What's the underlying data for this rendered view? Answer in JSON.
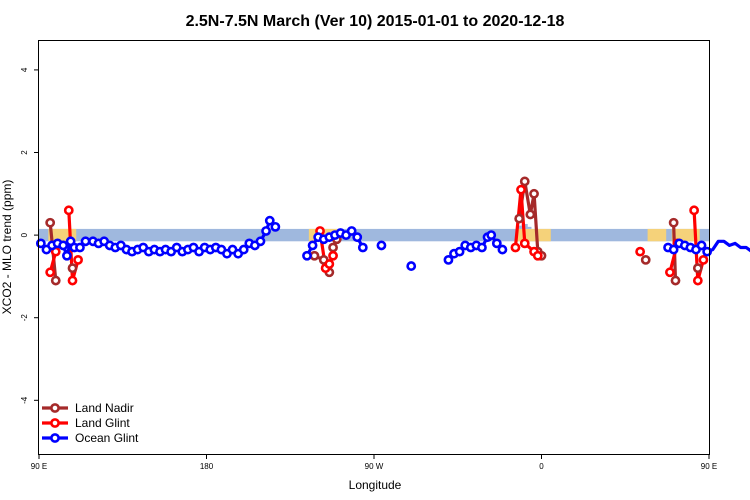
{
  "chart_data": {
    "type": "line",
    "title": "2.5N-7.5N March (Ver 10)   2015-01-01 to 2020-12-18",
    "xlabel": "Longitude",
    "ylabel": "XCO2 - MLO trend (ppm)",
    "xlim": [
      -90,
      270
    ],
    "ylim": [
      -5.3,
      4.7
    ],
    "x_ticks": [
      {
        "value": -90,
        "label": "90 E"
      },
      {
        "value": 0,
        "label": "180"
      },
      {
        "value": 90,
        "label": "90 W"
      },
      {
        "value": 180,
        "label": "0"
      },
      {
        "value": 270,
        "label": "90 E"
      },
      {
        "value": 360,
        "label": "180"
      }
    ],
    "y_ticks": [
      -4,
      -2,
      0,
      2,
      4
    ],
    "grid": false,
    "legend_position": "bottom-left",
    "background_bands": [
      {
        "name": "ocean",
        "color": "#9fb8de",
        "y_range": [
          -0.15,
          0.15
        ]
      },
      {
        "name": "land",
        "color": "#f5d27a",
        "y_range": [
          -0.15,
          0.15
        ]
      }
    ],
    "series": [
      {
        "name": "Land Nadir",
        "color": "#a52a2a",
        "segments": [
          [
            [
              -84,
              0.3
            ],
            [
              -81,
              -1.1
            ]
          ],
          [
            [
              -72,
              -0.8
            ]
          ],
          [
            [
              58,
              -0.5
            ],
            [
              63,
              -0.6
            ],
            [
              66,
              -0.9
            ],
            [
              68,
              -0.3
            ],
            [
              70,
              -0.1
            ]
          ],
          [
            [
              168,
              0.4
            ],
            [
              171,
              1.3
            ],
            [
              174,
              0.5
            ],
            [
              176,
              1.0
            ],
            [
              178,
              -0.4
            ],
            [
              180,
              -0.5
            ]
          ],
          [
            [
              236,
              -0.6
            ]
          ],
          [
            [
              251,
              0.3
            ],
            [
              252,
              -1.1
            ]
          ],
          [
            [
              264,
              -0.8
            ]
          ]
        ]
      },
      {
        "name": "Land Glint",
        "color": "#ff0000",
        "segments": [
          [
            [
              -84,
              -0.9
            ],
            [
              -81,
              -0.4
            ]
          ],
          [
            [
              -74,
              0.6
            ],
            [
              -72,
              -1.1
            ],
            [
              -69,
              -0.6
            ]
          ],
          [
            [
              61,
              0.1
            ],
            [
              64,
              -0.8
            ],
            [
              66,
              -0.7
            ],
            [
              68,
              -0.5
            ]
          ],
          [
            [
              166,
              -0.3
            ],
            [
              169,
              1.1
            ],
            [
              171,
              -0.2
            ],
            [
              176,
              -0.4
            ],
            [
              178,
              -0.5
            ]
          ],
          [
            [
              233,
              -0.4
            ]
          ],
          [
            [
              249,
              -0.9
            ],
            [
              253,
              -0.2
            ]
          ],
          [
            [
              262,
              0.6
            ],
            [
              264,
              -1.1
            ],
            [
              267,
              -0.6
            ]
          ]
        ]
      },
      {
        "name": "Ocean Glint",
        "color": "#0000ff",
        "segments": [
          [
            [
              -89,
              -0.2
            ],
            [
              -86,
              -0.35
            ],
            [
              -83,
              -0.25
            ],
            [
              -80,
              -0.2
            ],
            [
              -77,
              -0.25
            ],
            [
              -75,
              -0.5
            ],
            [
              -73,
              -0.15
            ],
            [
              -71,
              -0.3
            ],
            [
              -68,
              -0.3
            ],
            [
              -65,
              -0.15
            ],
            [
              -61,
              -0.15
            ],
            [
              -58,
              -0.2
            ],
            [
              -55,
              -0.15
            ],
            [
              -52,
              -0.25
            ],
            [
              -49,
              -0.3
            ],
            [
              -46,
              -0.25
            ],
            [
              -43,
              -0.35
            ],
            [
              -40,
              -0.4
            ],
            [
              -37,
              -0.35
            ],
            [
              -34,
              -0.3
            ],
            [
              -31,
              -0.4
            ],
            [
              -28,
              -0.35
            ],
            [
              -25,
              -0.4
            ],
            [
              -22,
              -0.35
            ],
            [
              -19,
              -0.4
            ],
            [
              -16,
              -0.3
            ],
            [
              -13,
              -0.4
            ],
            [
              -10,
              -0.35
            ],
            [
              -7,
              -0.3
            ],
            [
              -4,
              -0.4
            ],
            [
              -1,
              -0.3
            ],
            [
              2,
              -0.35
            ],
            [
              5,
              -0.3
            ],
            [
              8,
              -0.35
            ],
            [
              11,
              -0.45
            ],
            [
              14,
              -0.35
            ],
            [
              17,
              -0.45
            ],
            [
              20,
              -0.35
            ],
            [
              23,
              -0.2
            ],
            [
              26,
              -0.25
            ],
            [
              29,
              -0.15
            ],
            [
              32,
              0.1
            ],
            [
              34,
              0.35
            ],
            [
              37,
              0.2
            ]
          ],
          [
            [
              54,
              -0.5
            ],
            [
              57,
              -0.25
            ],
            [
              60,
              -0.05
            ],
            [
              63,
              -0.1
            ],
            [
              66,
              -0.05
            ],
            [
              69,
              0.0
            ],
            [
              72,
              0.05
            ],
            [
              75,
              0.0
            ],
            [
              78,
              0.1
            ],
            [
              81,
              -0.05
            ],
            [
              84,
              -0.3
            ]
          ],
          [
            [
              94,
              -0.25
            ]
          ],
          [
            [
              110,
              -0.75
            ]
          ],
          [
            [
              130,
              -0.6
            ],
            [
              133,
              -0.45
            ],
            [
              136,
              -0.4
            ],
            [
              139,
              -0.25
            ],
            [
              142,
              -0.3
            ],
            [
              145,
              -0.25
            ],
            [
              148,
              -0.3
            ],
            [
              151,
              -0.05
            ],
            [
              153,
              0.0
            ],
            [
              156,
              -0.2
            ],
            [
              159,
              -0.35
            ]
          ],
          [
            [
              248,
              -0.3
            ],
            [
              251,
              -0.35
            ],
            [
              254,
              -0.2
            ],
            [
              257,
              -0.25
            ],
            [
              260,
              -0.3
            ],
            [
              263,
              -0.35
            ],
            [
              266,
              -0.25
            ],
            [
              269,
              -0.4
            ],
            [
              272,
              -0.35
            ],
            [
              275,
              -0.15
            ],
            [
              278,
              -0.15
            ],
            [
              281,
              -0.25
            ],
            [
              284,
              -0.2
            ],
            [
              287,
              -0.3
            ],
            [
              290,
              -0.3
            ],
            [
              293,
              -0.4
            ],
            [
              296,
              -0.45
            ]
          ]
        ]
      }
    ]
  }
}
